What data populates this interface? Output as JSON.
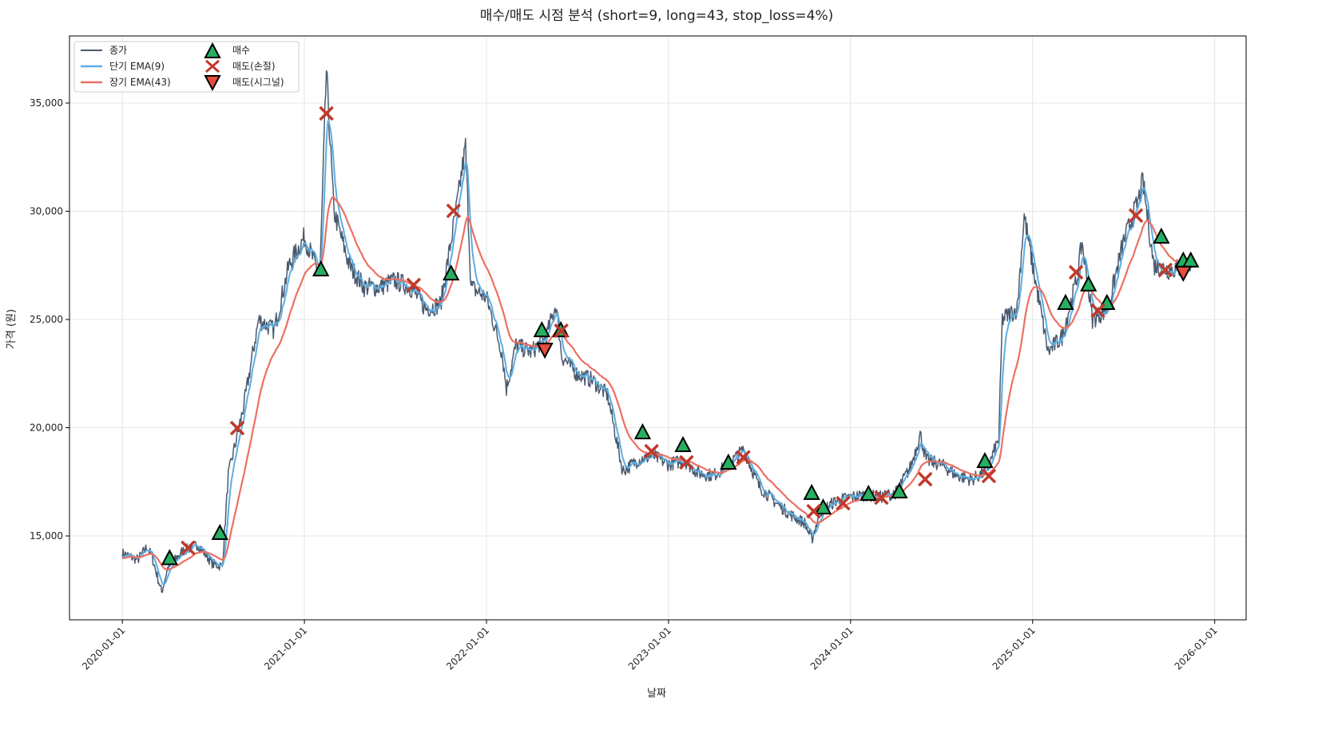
{
  "chart_data": {
    "type": "line",
    "title": "매수/매도 시점 분석 (short=9, long=43, stop_loss=4%)",
    "xlabel": "날짜",
    "ylabel": "가격 (원)",
    "xlim": [
      "2019-09-17",
      "2026-03-05"
    ],
    "ylim": [
      11125,
      38100
    ],
    "grid": true,
    "legend_placement": "top-left",
    "x_ticks": [
      "2020-01-01",
      "2021-01-01",
      "2022-01-01",
      "2023-01-01",
      "2024-01-01",
      "2025-01-01",
      "2026-01-01"
    ],
    "y_ticks": [
      15000,
      20000,
      25000,
      30000,
      35000
    ],
    "y_tick_labels": [
      "15,000",
      "20,000",
      "25,000",
      "30,000",
      "35,000"
    ],
    "legend": {
      "close": "종가",
      "ema_short": "단기 EMA(9)",
      "ema_long": "장기 EMA(43)",
      "buy": "매수",
      "sell_stop": "매도(손절)",
      "sell_signal": "매도(시그널)"
    },
    "colors": {
      "close": "#4a5a6e",
      "ema_short": "#5dade2",
      "ema_long": "#ec7063",
      "buy": "#27ae60",
      "sell_stop": "#c0392b",
      "sell_signal": "#e74c3c"
    },
    "close": [
      [
        "2020-01-01",
        14200
      ],
      [
        "2020-02-01",
        13900
      ],
      [
        "2020-02-20",
        14500
      ],
      [
        "2020-03-01",
        14000
      ],
      [
        "2020-03-20",
        12400
      ],
      [
        "2020-04-01",
        13500
      ],
      [
        "2020-05-01",
        14300
      ],
      [
        "2020-06-01",
        14600
      ],
      [
        "2020-07-01",
        13700
      ],
      [
        "2020-07-20",
        13600
      ],
      [
        "2020-08-01",
        17800
      ],
      [
        "2020-09-01",
        21000
      ],
      [
        "2020-10-01",
        25000
      ],
      [
        "2020-11-01",
        24500
      ],
      [
        "2020-12-01",
        27500
      ],
      [
        "2021-01-01",
        28800
      ],
      [
        "2021-02-01",
        27000
      ],
      [
        "2021-02-14",
        36500
      ],
      [
        "2021-03-01",
        30000
      ],
      [
        "2021-04-01",
        27500
      ],
      [
        "2021-05-01",
        26500
      ],
      [
        "2021-06-01",
        26500
      ],
      [
        "2021-07-01",
        26800
      ],
      [
        "2021-08-01",
        26500
      ],
      [
        "2021-09-01",
        25500
      ],
      [
        "2021-10-01",
        25700
      ],
      [
        "2021-11-01",
        30000
      ],
      [
        "2021-11-20",
        33000
      ],
      [
        "2021-12-01",
        26500
      ],
      [
        "2022-01-01",
        26000
      ],
      [
        "2022-02-01",
        23500
      ],
      [
        "2022-02-10",
        21800
      ],
      [
        "2022-03-01",
        23800
      ],
      [
        "2022-04-01",
        23500
      ],
      [
        "2022-05-01",
        24200
      ],
      [
        "2022-05-20",
        25700
      ],
      [
        "2022-06-01",
        23300
      ],
      [
        "2022-07-01",
        22500
      ],
      [
        "2022-08-01",
        22200
      ],
      [
        "2022-09-01",
        21500
      ],
      [
        "2022-10-01",
        18000
      ],
      [
        "2022-11-01",
        18500
      ],
      [
        "2022-12-01",
        18700
      ],
      [
        "2023-01-01",
        18300
      ],
      [
        "2023-02-01",
        18500
      ],
      [
        "2023-03-01",
        17900
      ],
      [
        "2023-04-01",
        17800
      ],
      [
        "2023-05-01",
        18300
      ],
      [
        "2023-06-01",
        19000
      ],
      [
        "2023-07-01",
        17300
      ],
      [
        "2023-08-01",
        16600
      ],
      [
        "2023-09-01",
        16000
      ],
      [
        "2023-10-01",
        15600
      ],
      [
        "2023-10-15",
        14800
      ],
      [
        "2023-11-01",
        16100
      ],
      [
        "2023-12-01",
        16600
      ],
      [
        "2024-01-01",
        16800
      ],
      [
        "2024-02-01",
        16900
      ],
      [
        "2024-03-01",
        16800
      ],
      [
        "2024-04-01",
        17000
      ],
      [
        "2024-05-01",
        18200
      ],
      [
        "2024-05-20",
        19700
      ],
      [
        "2024-06-01",
        18500
      ],
      [
        "2024-07-01",
        18300
      ],
      [
        "2024-08-01",
        17800
      ],
      [
        "2024-09-01",
        17600
      ],
      [
        "2024-10-01",
        18000
      ],
      [
        "2024-10-25",
        19500
      ],
      [
        "2024-11-01",
        25000
      ],
      [
        "2024-12-01",
        25500
      ],
      [
        "2024-12-15",
        29800
      ],
      [
        "2025-01-01",
        27500
      ],
      [
        "2025-02-01",
        23500
      ],
      [
        "2025-03-01",
        24200
      ],
      [
        "2025-04-01",
        27000
      ],
      [
        "2025-04-10",
        28600
      ],
      [
        "2025-05-01",
        25000
      ],
      [
        "2025-06-01",
        25500
      ],
      [
        "2025-07-01",
        28500
      ],
      [
        "2025-08-01",
        30500
      ],
      [
        "2025-08-10",
        31400
      ],
      [
        "2025-09-01",
        27500
      ],
      [
        "2025-10-01",
        27300
      ],
      [
        "2025-11-01",
        27400
      ],
      [
        "2025-11-20",
        27600
      ]
    ],
    "buy_points": [
      [
        "2020-04-05",
        13950
      ],
      [
        "2020-07-15",
        15110
      ],
      [
        "2021-02-03",
        27290
      ],
      [
        "2021-10-22",
        27100
      ],
      [
        "2022-04-22",
        24480
      ],
      [
        "2022-05-30",
        24480
      ],
      [
        "2022-11-10",
        19760
      ],
      [
        "2023-01-30",
        19170
      ],
      [
        "2023-05-01",
        18360
      ],
      [
        "2023-10-15",
        16960
      ],
      [
        "2023-11-07",
        16290
      ],
      [
        "2024-02-06",
        16920
      ],
      [
        "2024-04-08",
        17030
      ],
      [
        "2024-09-27",
        18430
      ],
      [
        "2025-03-08",
        25740
      ],
      [
        "2025-04-23",
        26590
      ],
      [
        "2025-05-30",
        25740
      ],
      [
        "2025-09-16",
        28800
      ],
      [
        "2025-10-30",
        27700
      ],
      [
        "2025-11-14",
        27700
      ]
    ],
    "sell_stop_points": [
      [
        "2020-05-12",
        14450
      ],
      [
        "2020-08-19",
        19980
      ],
      [
        "2021-02-14",
        34520
      ],
      [
        "2021-08-08",
        26590
      ],
      [
        "2021-10-27",
        30020
      ],
      [
        "2022-05-31",
        24480
      ],
      [
        "2022-11-28",
        18910
      ],
      [
        "2023-02-06",
        18400
      ],
      [
        "2023-05-31",
        18630
      ],
      [
        "2023-10-19",
        16140
      ],
      [
        "2023-12-17",
        16510
      ],
      [
        "2024-03-03",
        16770
      ],
      [
        "2024-05-30",
        17620
      ],
      [
        "2024-10-05",
        17770
      ],
      [
        "2025-03-29",
        27180
      ],
      [
        "2025-05-12",
        25410
      ],
      [
        "2025-07-27",
        29800
      ],
      [
        "2025-09-24",
        27290
      ]
    ],
    "sell_signal_points": [
      [
        "2022-04-28",
        23630
      ],
      [
        "2025-10-30",
        27180
      ]
    ]
  }
}
